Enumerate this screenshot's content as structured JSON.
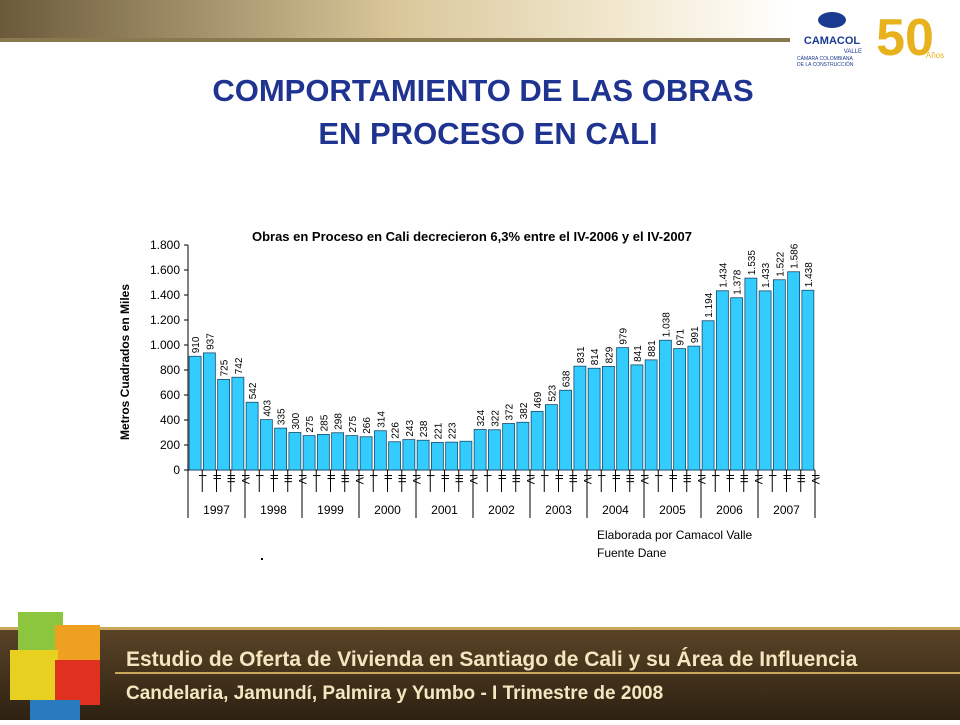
{
  "slide": {
    "title_lines": [
      "COMPORTAMIENTO DE LAS OBRAS",
      "EN PROCESO EN CALI"
    ],
    "logo": {
      "name": "CAMACOL",
      "region": "VALLE",
      "org_lines": [
        "CÁMARA COLOMBIANA",
        "DE LA CONSTRUCCIÓN"
      ],
      "anniversary": "50",
      "anniversary_word": "Años"
    },
    "banner_lines": [
      "Estudio de Oferta de Vivienda en Santiago de Cali y su Área de Influencia",
      "Candelaria, Jamundí, Palmira y Yumbo - I Trimestre de 2008"
    ],
    "notes": [
      "Elaborada por Camacol Valle",
      "Fuente Dane"
    ]
  },
  "chart_data": {
    "type": "bar",
    "title": "Obras en Proceso en Cali decrecieron 6,3% entre el IV-2006 y el IV-2007",
    "y_label": "Metros Cuadrados en Miles",
    "categories": [
      "I",
      "II",
      "III",
      "IV",
      "I",
      "II",
      "III",
      "IV",
      "I",
      "II",
      "III",
      "IV",
      "I",
      "II",
      "III",
      "IV",
      "I",
      "II",
      "III",
      "IV",
      "I",
      "II",
      "III",
      "IV",
      "I",
      "II",
      "III",
      "IV",
      "I",
      "II",
      "III",
      "IV",
      "I",
      "II",
      "III",
      "IV",
      "I",
      "II",
      "III",
      "IV",
      "I",
      "II",
      "III",
      "IV"
    ],
    "years": [
      "1997",
      "1998",
      "1999",
      "2000",
      "2001",
      "2002",
      "2003",
      "2004",
      "2005",
      "2006",
      "2007"
    ],
    "values": [
      910,
      937,
      725,
      742,
      542,
      403,
      335,
      300,
      275,
      285,
      298,
      275,
      266,
      314,
      226,
      243,
      238,
      221,
      223,
      230,
      324,
      322,
      372,
      382,
      469,
      523,
      638,
      831,
      814,
      829,
      979,
      841,
      881,
      1038,
      971,
      991,
      1194,
      1434,
      1378,
      1535,
      1433,
      1522,
      1586,
      1438
    ],
    "value_labels": [
      "910",
      "937",
      "725",
      "742",
      "542",
      "403",
      "335",
      "300",
      "275",
      "285",
      "298",
      "275",
      "266",
      "314",
      "226",
      "243",
      "238",
      "221",
      "223",
      null,
      "324",
      "322",
      "372",
      "382",
      "469",
      "523",
      "638",
      "831",
      "814",
      "829",
      "979",
      "841",
      "881",
      "1.038",
      "971",
      "991",
      "1.194",
      "1.434",
      "1.378",
      "1.535",
      "1.433",
      "1.522",
      "1.586",
      "1.438"
    ],
    "color": "#33ccff",
    "ylim": [
      0,
      1800
    ],
    "yticks": [
      0,
      200,
      400,
      600,
      800,
      {
        "value": 1000,
        "label": "1.000"
      },
      {
        "value": 1200,
        "label": "1.200"
      },
      {
        "value": 1400,
        "label": "1.400"
      },
      {
        "value": 1600,
        "label": "1.600"
      },
      {
        "value": 1800,
        "label": "1.800"
      }
    ]
  }
}
